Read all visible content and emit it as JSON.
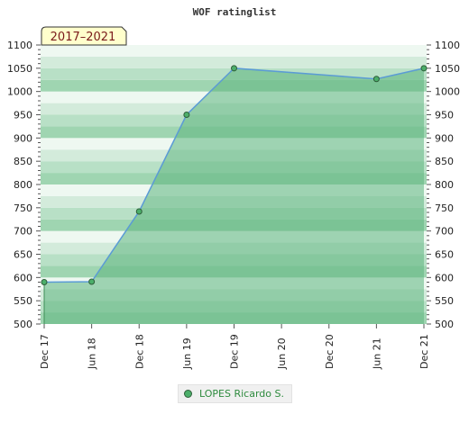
{
  "chart_data": {
    "type": "area",
    "title": "WOF ratinglist",
    "period_label": "2017–2021",
    "x_ticks": [
      "Dec 17",
      "Jun 18",
      "Dec 18",
      "Jun 19",
      "Dec 19",
      "Jun 20",
      "Dec 20",
      "Jun 21",
      "Dec 21"
    ],
    "y_ticks": [
      500,
      550,
      600,
      650,
      700,
      750,
      800,
      850,
      900,
      950,
      1000,
      1050,
      1100
    ],
    "ylim": [
      500,
      1100
    ],
    "series": [
      {
        "name": "LOPES Ricardo S.",
        "x": [
          "Dec 17",
          "Jun 18",
          "Dec 18",
          "Jun 19",
          "Dec 19",
          "Jun 21",
          "Dec 21"
        ],
        "values": [
          590,
          591,
          742,
          950,
          1050,
          1027,
          1050
        ]
      }
    ],
    "legend_position": "bottom",
    "colors": {
      "line": "#5b9bd5",
      "fill": "#7fc79a",
      "marker": "#4caf6a",
      "legend_text": "#2e8b3e",
      "badge_bg": "#ffffcc"
    }
  }
}
